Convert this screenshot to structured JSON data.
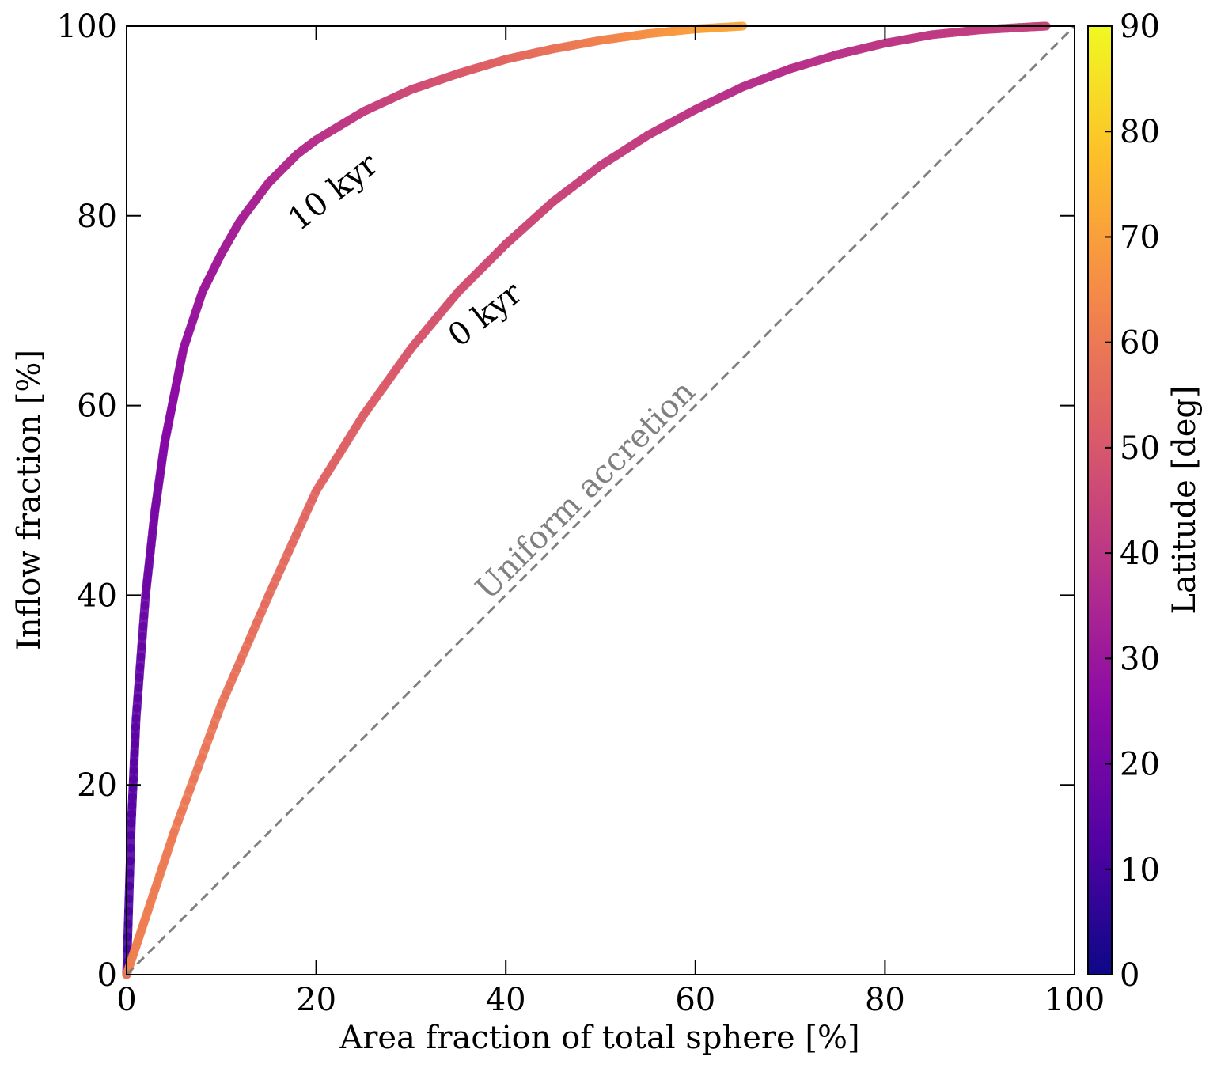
{
  "chart_data": {
    "type": "line",
    "xlabel": "Area fraction of total sphere [%]",
    "ylabel": "Inflow fraction [%]",
    "xlim": [
      0,
      100
    ],
    "ylim": [
      0,
      100
    ],
    "xticks": [
      "0",
      "20",
      "40",
      "60",
      "80",
      "100"
    ],
    "yticks": [
      "0",
      "20",
      "40",
      "60",
      "80",
      "100"
    ],
    "grid": false,
    "colorbar": {
      "label": "Latitude [deg]",
      "range": [
        0,
        90
      ],
      "ticks": [
        "0",
        "10",
        "20",
        "30",
        "40",
        "50",
        "60",
        "70",
        "80",
        "90"
      ],
      "colormap": "plasma",
      "stops": [
        "#0d0887",
        "#5302a3",
        "#8b0aa5",
        "#b83289",
        "#db5c68",
        "#f48849",
        "#febd2a",
        "#f0f921"
      ]
    },
    "series": [
      {
        "label": "10 kyr",
        "x": [
          0,
          0.5,
          1,
          2,
          3,
          4,
          5,
          6,
          8,
          10,
          12,
          15,
          18,
          20,
          25,
          30,
          35,
          40,
          45,
          50,
          55,
          60,
          65
        ],
        "y": [
          0,
          16,
          27,
          40,
          49,
          56,
          61,
          66,
          72,
          76,
          79.5,
          83.5,
          86.5,
          88,
          91,
          93.3,
          95,
          96.5,
          97.6,
          98.5,
          99.2,
          99.7,
          100
        ],
        "latitude": [
          10,
          13,
          15,
          18,
          21,
          24,
          26,
          28,
          30,
          32,
          33,
          35,
          37,
          38,
          42,
          46,
          50,
          54,
          58,
          62,
          66,
          70,
          72
        ]
      },
      {
        "label": "0 kyr",
        "x": [
          0,
          2,
          5,
          10,
          15,
          20,
          25,
          30,
          35,
          40,
          45,
          50,
          55,
          60,
          65,
          70,
          75,
          80,
          85,
          90,
          95,
          97
        ],
        "y": [
          0,
          6,
          15,
          28.5,
          40,
          51,
          59,
          66,
          72,
          77,
          81.5,
          85.3,
          88.5,
          91.2,
          93.6,
          95.5,
          97,
          98.2,
          99.1,
          99.6,
          99.9,
          100
        ],
        "latitude": [
          62,
          61,
          60,
          58,
          56,
          54,
          52,
          50,
          48,
          46,
          45,
          43,
          42,
          40,
          38,
          38,
          39,
          40,
          41,
          42,
          43,
          44
        ]
      },
      {
        "label": "Uniform accretion",
        "x": [
          0,
          100
        ],
        "y": [
          0,
          100
        ],
        "color": "#808080",
        "dash": true
      }
    ],
    "annotations": [
      "10 kyr",
      "0 kyr",
      "Uniform accretion"
    ]
  }
}
